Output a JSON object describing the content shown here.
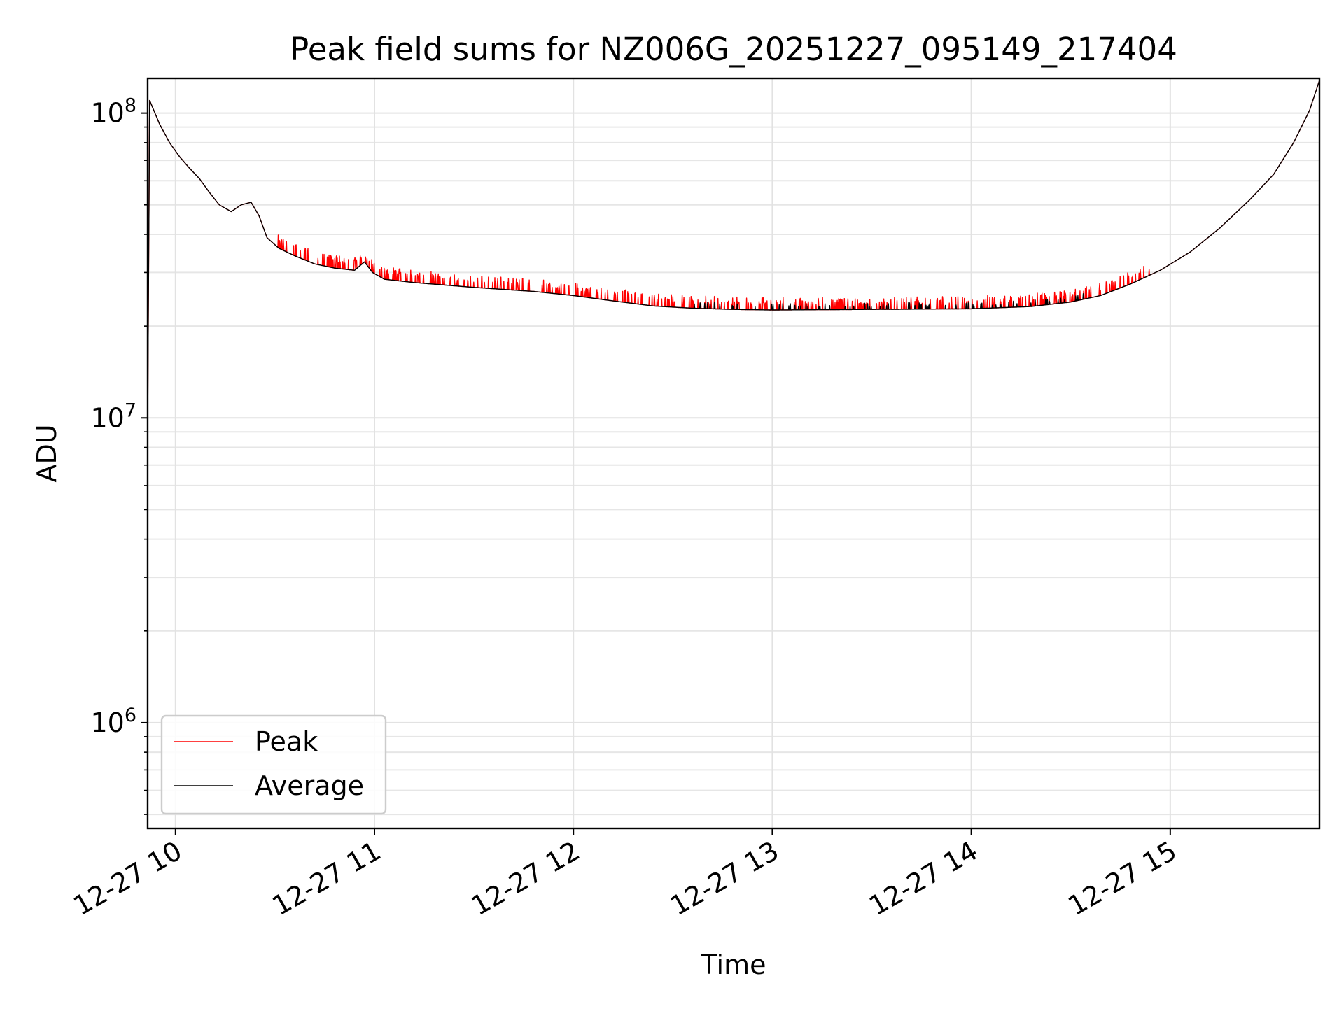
{
  "chart_data": {
    "type": "line",
    "title": "Peak field sums for NZ006G_20251227_095149_217404",
    "xlabel": "Time",
    "ylabel": "ADU",
    "y_scale": "log",
    "ylim": [
      450000,
      130000000
    ],
    "xlim_hours": [
      9.86,
      15.75
    ],
    "grid": true,
    "legend_location": "lower-left",
    "x_ticks": [
      {
        "hour": 10,
        "label": "12-27 10"
      },
      {
        "hour": 11,
        "label": "12-27 11"
      },
      {
        "hour": 12,
        "label": "12-27 12"
      },
      {
        "hour": 13,
        "label": "12-27 13"
      },
      {
        "hour": 14,
        "label": "12-27 14"
      },
      {
        "hour": 15,
        "label": "12-27 15"
      }
    ],
    "y_ticks": [
      {
        "value": 1000000,
        "base": "10",
        "exp": "6"
      },
      {
        "value": 10000000,
        "base": "10",
        "exp": "7"
      },
      {
        "value": 100000000,
        "base": "10",
        "exp": "8"
      }
    ],
    "series": [
      {
        "name": "Peak",
        "color": "#ff0000",
        "noise": "spikes",
        "points": [
          [
            9.86,
            9000000
          ],
          [
            9.87,
            110000000
          ],
          [
            9.92,
            92000000
          ],
          [
            9.97,
            80000000
          ],
          [
            10.02,
            72000000
          ],
          [
            10.07,
            66000000
          ],
          [
            10.12,
            61000000
          ],
          [
            10.17,
            55000000
          ],
          [
            10.22,
            50000000
          ],
          [
            10.28,
            47500000
          ],
          [
            10.33,
            50000000
          ],
          [
            10.38,
            51000000
          ],
          [
            10.42,
            46000000
          ],
          [
            10.46,
            39000000
          ],
          [
            10.52,
            36000000
          ],
          [
            10.6,
            34000000
          ],
          [
            10.7,
            32000000
          ],
          [
            10.8,
            31000000
          ],
          [
            10.9,
            30500000
          ],
          [
            10.95,
            32500000
          ],
          [
            10.99,
            30000000
          ],
          [
            11.05,
            28500000
          ],
          [
            11.2,
            27800000
          ],
          [
            11.5,
            26800000
          ],
          [
            11.8,
            26000000
          ],
          [
            12.0,
            25200000
          ],
          [
            12.2,
            24200000
          ],
          [
            12.4,
            23300000
          ],
          [
            12.6,
            22900000
          ],
          [
            12.8,
            22700000
          ],
          [
            13.0,
            22600000
          ],
          [
            13.5,
            22700000
          ],
          [
            14.0,
            22800000
          ],
          [
            14.3,
            23200000
          ],
          [
            14.5,
            24000000
          ],
          [
            14.65,
            25200000
          ],
          [
            14.8,
            27500000
          ],
          [
            14.95,
            30500000
          ],
          [
            15.1,
            35000000
          ],
          [
            15.25,
            42000000
          ],
          [
            15.4,
            52000000
          ],
          [
            15.52,
            63000000
          ],
          [
            15.62,
            80000000
          ],
          [
            15.7,
            102000000
          ],
          [
            15.75,
            128000000
          ]
        ]
      },
      {
        "name": "Average",
        "color": "#000000",
        "noise": "small",
        "points": [
          [
            9.86,
            9000000
          ],
          [
            9.87,
            110000000
          ],
          [
            9.92,
            92000000
          ],
          [
            9.97,
            80000000
          ],
          [
            10.02,
            72000000
          ],
          [
            10.07,
            66000000
          ],
          [
            10.12,
            61000000
          ],
          [
            10.17,
            55000000
          ],
          [
            10.22,
            50000000
          ],
          [
            10.28,
            47500000
          ],
          [
            10.33,
            50000000
          ],
          [
            10.38,
            51000000
          ],
          [
            10.42,
            46000000
          ],
          [
            10.46,
            39000000
          ],
          [
            10.52,
            36000000
          ],
          [
            10.6,
            34000000
          ],
          [
            10.7,
            32000000
          ],
          [
            10.8,
            31000000
          ],
          [
            10.9,
            30500000
          ],
          [
            10.95,
            32500000
          ],
          [
            10.99,
            30000000
          ],
          [
            11.05,
            28500000
          ],
          [
            11.2,
            27800000
          ],
          [
            11.5,
            26800000
          ],
          [
            11.8,
            26000000
          ],
          [
            12.0,
            25200000
          ],
          [
            12.2,
            24200000
          ],
          [
            12.4,
            23300000
          ],
          [
            12.6,
            22900000
          ],
          [
            12.8,
            22700000
          ],
          [
            13.0,
            22600000
          ],
          [
            13.5,
            22700000
          ],
          [
            14.0,
            22800000
          ],
          [
            14.3,
            23200000
          ],
          [
            14.5,
            24000000
          ],
          [
            14.65,
            25200000
          ],
          [
            14.8,
            27500000
          ],
          [
            14.95,
            30500000
          ],
          [
            15.1,
            35000000
          ],
          [
            15.25,
            42000000
          ],
          [
            15.4,
            52000000
          ],
          [
            15.52,
            63000000
          ],
          [
            15.62,
            80000000
          ],
          [
            15.7,
            102000000
          ],
          [
            15.75,
            128000000
          ]
        ]
      }
    ]
  }
}
